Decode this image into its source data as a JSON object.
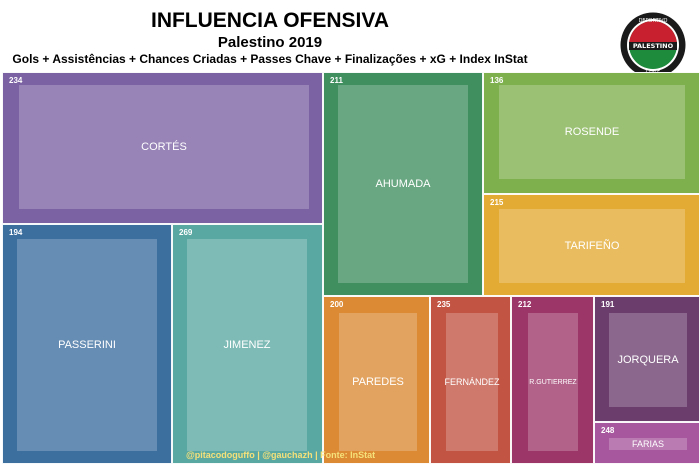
{
  "header": {
    "title": "INFLUENCIA OFENSIVA",
    "subtitle": "Palestino 2019",
    "metrics": "Gols + Assistências + Chances Criadas + Passes Chave + Finalizações + xG + Index InStat"
  },
  "logo": {
    "top_text": "DEPORTIVO",
    "name": "PALESTINO",
    "bottom_text": "CHILE",
    "colors": {
      "outer": "#1a1a1a",
      "red": "#c8202f",
      "green": "#1d8a3c",
      "white": "#ffffff"
    }
  },
  "credit": "@pitacodoguffo | @gauchazh | Fonte: InStat",
  "chart_data": {
    "type": "treemap",
    "title": "INFLUENCIA OFENSIVA",
    "subtitle": "Palestino 2019",
    "value_label": "Gols + Assistências + Chances Criadas + Passes Chave + Finalizações + xG + Index InStat",
    "series": [
      {
        "name": "CORTÉS",
        "value": 234,
        "color": "#7b62a3"
      },
      {
        "name": "AHUMADA",
        "value": 211,
        "color": "#3f8f5f"
      },
      {
        "name": "ROSENDE",
        "value": 136,
        "color": "#7fb04e"
      },
      {
        "name": "TARIFEÑO",
        "value": 215,
        "color": "#e3ab33"
      },
      {
        "name": "PASSERINI",
        "value": 194,
        "color": "#3c6e9e"
      },
      {
        "name": "JIMENEZ",
        "value": 269,
        "color": "#5aa8a2"
      },
      {
        "name": "PAREDES",
        "value": 200,
        "color": "#dc8a34"
      },
      {
        "name": "FERNÁNDEZ",
        "value": 235,
        "color": "#c25443"
      },
      {
        "name": "R.GUTIERREZ",
        "value": 212,
        "color": "#9d3668"
      },
      {
        "name": "JORQUERA",
        "value": 191,
        "color": "#6b3d6d"
      },
      {
        "name": "FARIAS",
        "value": 248,
        "color": "#a6579d"
      }
    ]
  }
}
